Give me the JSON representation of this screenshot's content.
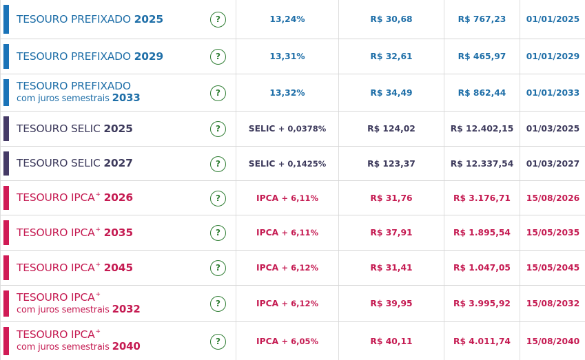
{
  "colors": {
    "prefixado": "#1f6fa8",
    "prefixado_bar": "#1a73b8",
    "selic": "#3d3a5c",
    "selic_bar": "#453a66",
    "ipca": "#c51b52",
    "ipca_bar": "#d01a55",
    "help_icon": "#2e7d32"
  },
  "rows": [
    {
      "group": "prefixado",
      "title": "TESOURO PREFIXADO",
      "plus": false,
      "subtitle": "",
      "year": "2025",
      "rate_prefix": "",
      "rate": "13,24%",
      "price": "R$ 30,68",
      "min": "R$ 767,23",
      "due": "01/01/2025"
    },
    {
      "group": "prefixado",
      "title": "TESOURO PREFIXADO",
      "plus": false,
      "subtitle": "",
      "year": "2029",
      "rate_prefix": "",
      "rate": "13,31%",
      "price": "R$ 32,61",
      "min": "R$ 465,97",
      "due": "01/01/2029"
    },
    {
      "group": "prefixado",
      "title": "TESOURO PREFIXADO",
      "plus": false,
      "subtitle": "com juros semestrais",
      "year": "2033",
      "rate_prefix": "",
      "rate": "13,32%",
      "price": "R$ 34,49",
      "min": "R$ 862,44",
      "due": "01/01/2033"
    },
    {
      "group": "selic",
      "title": "TESOURO SELIC",
      "plus": false,
      "subtitle": "",
      "year": "2025",
      "rate_prefix": "SELIC",
      "rate": "+ 0,0378%",
      "price": "R$ 124,02",
      "min": "R$ 12.402,15",
      "due": "01/03/2025"
    },
    {
      "group": "selic",
      "title": "TESOURO SELIC",
      "plus": false,
      "subtitle": "",
      "year": "2027",
      "rate_prefix": "SELIC",
      "rate": "+ 0,1425%",
      "price": "R$ 123,37",
      "min": "R$ 12.337,54",
      "due": "01/03/2027"
    },
    {
      "group": "ipca",
      "title": "TESOURO IPCA",
      "plus": true,
      "subtitle": "",
      "year": "2026",
      "rate_prefix": "IPCA",
      "rate": "+ 6,11%",
      "price": "R$ 31,76",
      "min": "R$ 3.176,71",
      "due": "15/08/2026"
    },
    {
      "group": "ipca",
      "title": "TESOURO IPCA",
      "plus": true,
      "subtitle": "",
      "year": "2035",
      "rate_prefix": "IPCA",
      "rate": "+ 6,11%",
      "price": "R$ 37,91",
      "min": "R$ 1.895,54",
      "due": "15/05/2035"
    },
    {
      "group": "ipca",
      "title": "TESOURO IPCA",
      "plus": true,
      "subtitle": "",
      "year": "2045",
      "rate_prefix": "IPCA",
      "rate": "+ 6,12%",
      "price": "R$ 31,41",
      "min": "R$ 1.047,05",
      "due": "15/05/2045"
    },
    {
      "group": "ipca",
      "title": "TESOURO IPCA",
      "plus": true,
      "subtitle": "com juros semestrais",
      "year": "2032",
      "rate_prefix": "IPCA",
      "rate": "+ 6,12%",
      "price": "R$ 39,95",
      "min": "R$ 3.995,92",
      "due": "15/08/2032"
    },
    {
      "group": "ipca",
      "title": "TESOURO IPCA",
      "plus": true,
      "subtitle": "com juros semestrais",
      "year": "2040",
      "rate_prefix": "IPCA",
      "rate": "+ 6,05%",
      "price": "R$ 40,11",
      "min": "R$ 4.011,74",
      "due": "15/08/2040"
    }
  ],
  "help_label": "?",
  "plus_sign": "+"
}
